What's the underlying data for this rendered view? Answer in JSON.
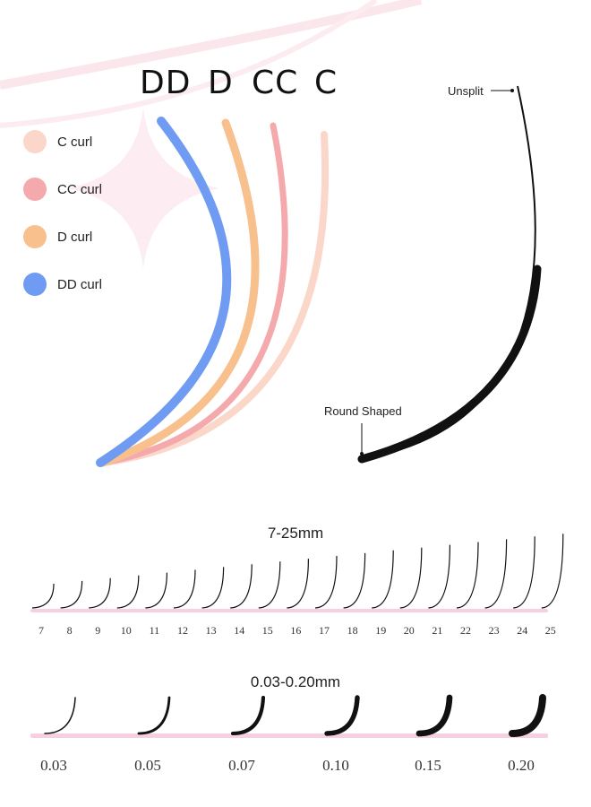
{
  "curl_headers": [
    "DD",
    "D",
    "CC",
    "C"
  ],
  "legend": [
    {
      "label": "C curl",
      "color": "#fad7c9"
    },
    {
      "label": "CC curl",
      "color": "#f4a9ac"
    },
    {
      "label": "D curl",
      "color": "#f7c08c"
    },
    {
      "label": "DD curl",
      "color": "#6f9cf2"
    }
  ],
  "callouts": {
    "top": "Unsplit",
    "bottom": "Round Shaped"
  },
  "lengths": {
    "title": "7-25mm",
    "values": [
      "7",
      "8",
      "9",
      "10",
      "11",
      "12",
      "13",
      "14",
      "15",
      "16",
      "17",
      "18",
      "19",
      "20",
      "21",
      "22",
      "23",
      "24",
      "25"
    ]
  },
  "thickness": {
    "title": "0.03-0.20mm",
    "values": [
      "0.03",
      "0.05",
      "0.07",
      "0.10",
      "0.15",
      "0.20"
    ]
  },
  "colors": {
    "pink_bar": "#f6cfe0",
    "lash": "#111111",
    "sparkle": "#fbe3ea"
  }
}
